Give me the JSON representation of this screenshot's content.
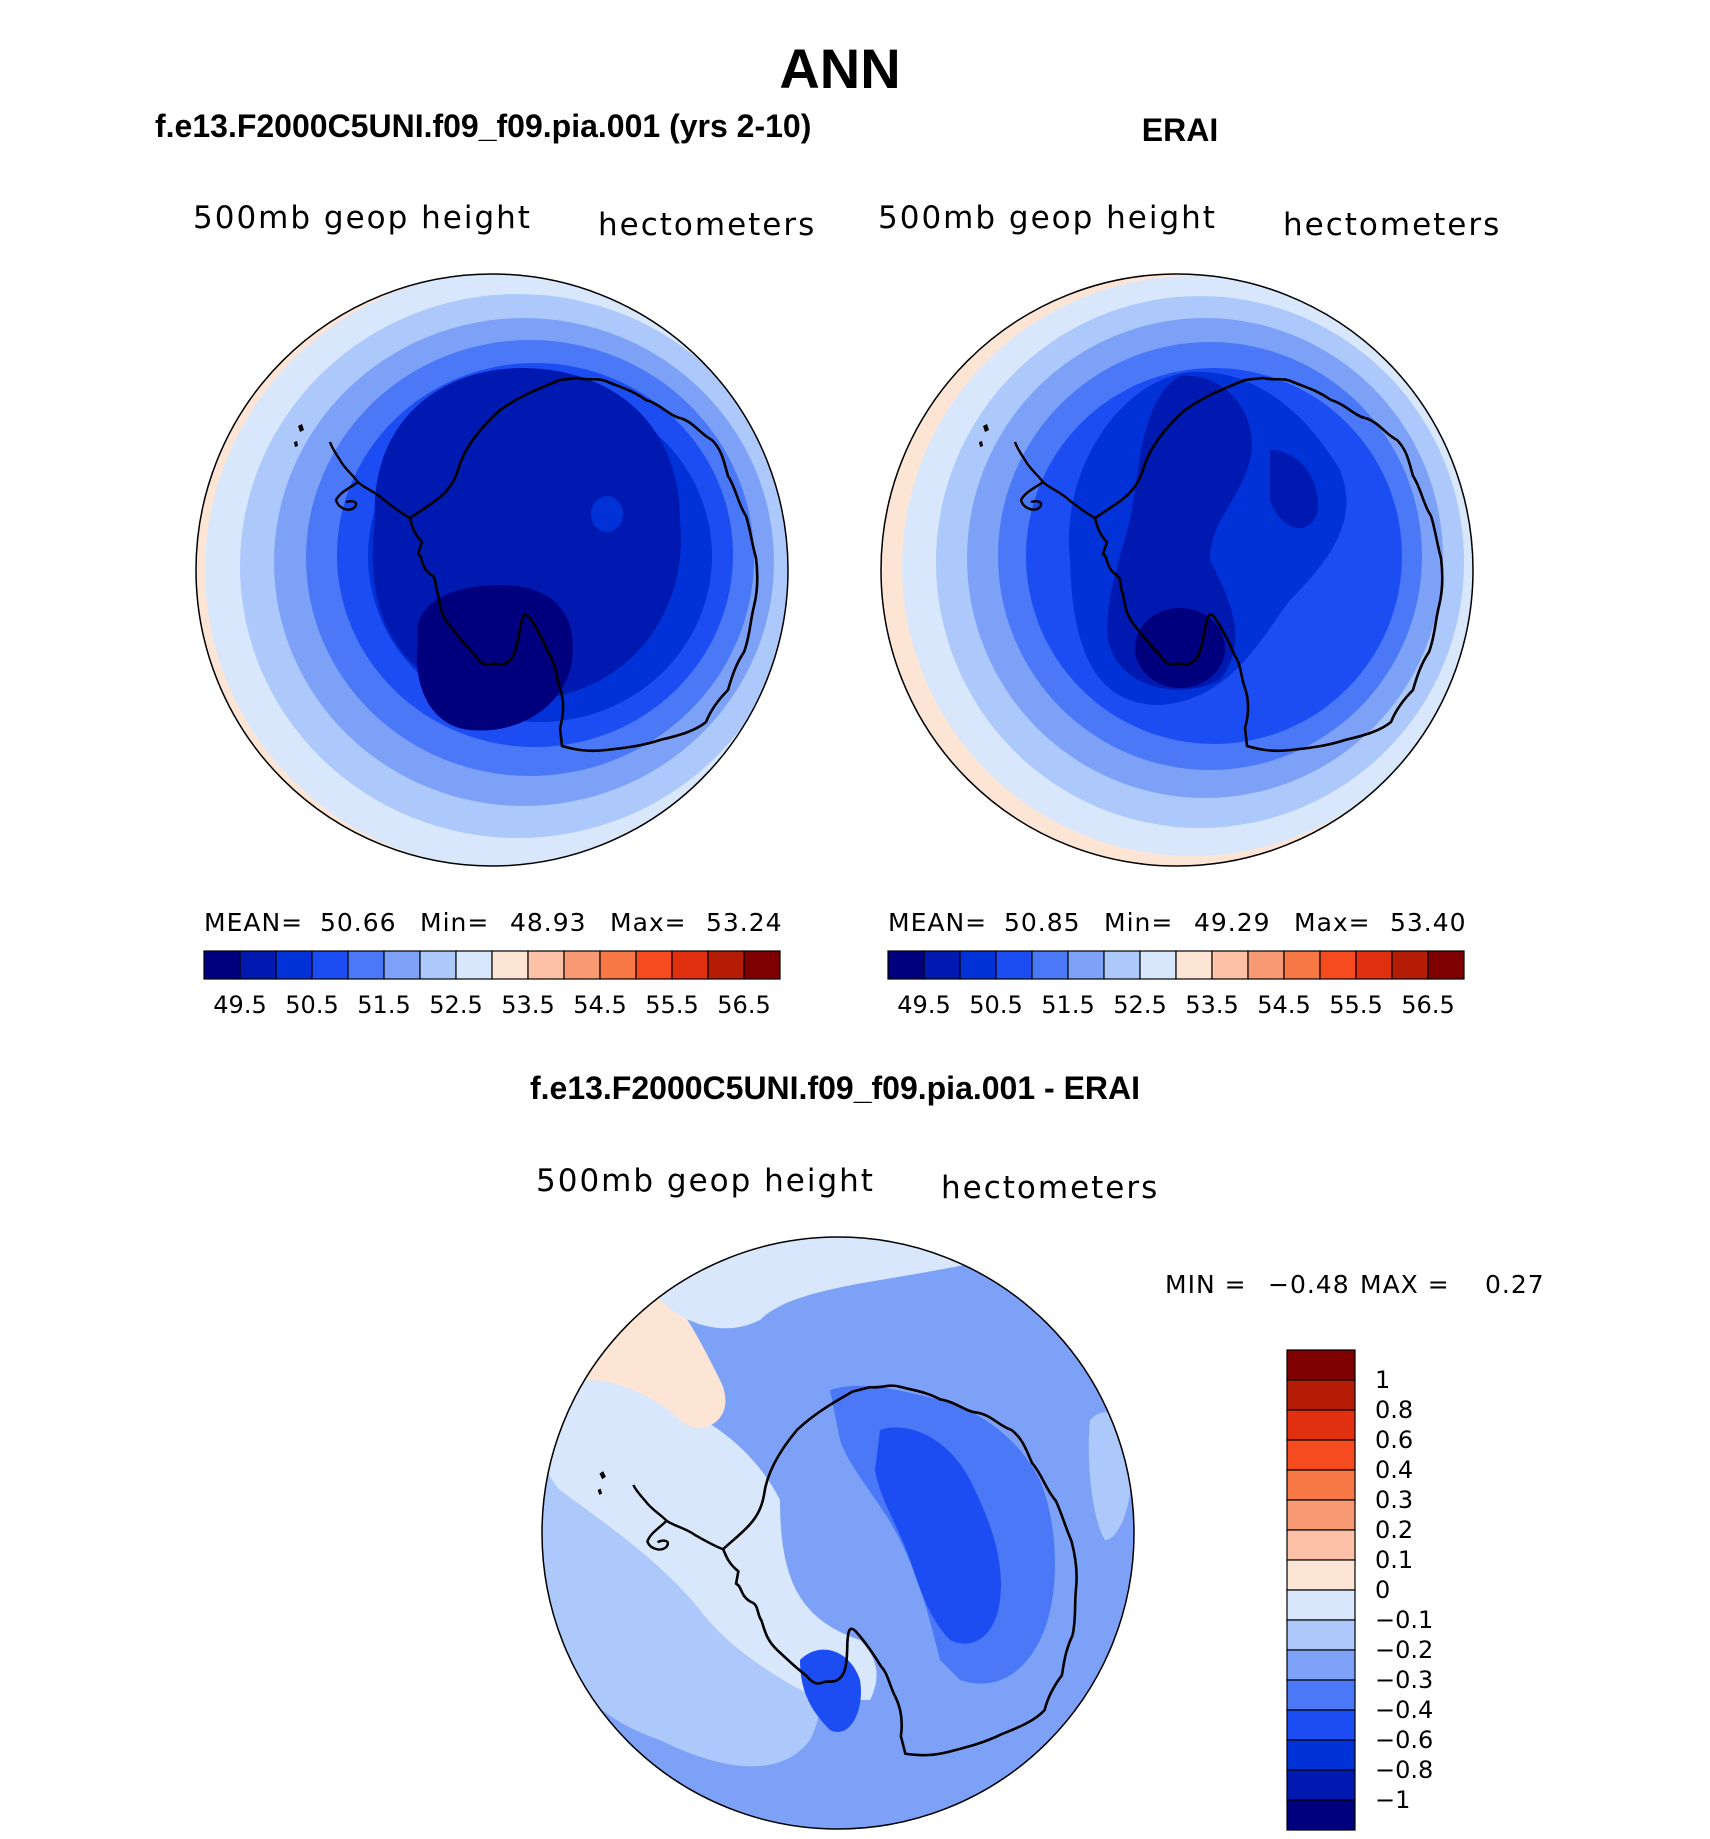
{
  "figure_title": "ANN",
  "chart_data": [
    {
      "type": "heatmap",
      "title": "f.e13.F2000C5UNI.f09_f09.pia.001 (yrs 2-10)",
      "left_label": "500mb geop height",
      "right_label": "hectometers",
      "stats": {
        "mean_label": "MEAN=",
        "mean": "50.66",
        "min_label": "Min=",
        "min": "48.93",
        "max_label": "Max=",
        "max": "53.24"
      },
      "colorbar_ticks": [
        "49.5",
        "50.5",
        "51.5",
        "52.5",
        "53.5",
        "54.5",
        "55.5",
        "56.5"
      ],
      "colorbar_colors": [
        "#00007f",
        "#0019b0",
        "#0032d8",
        "#1c4df2",
        "#4a78f6",
        "#7ea1f8",
        "#adc8fa",
        "#d8e7fb",
        "#fde5d5",
        "#fcc1a6",
        "#f79a73",
        "#f77844",
        "#f54b1f",
        "#e0300f",
        "#b41c05",
        "#7f0000"
      ],
      "projection": "south-polar-stereographic"
    },
    {
      "type": "heatmap",
      "title": "ERAI",
      "left_label": "500mb geop height",
      "right_label": "hectometers",
      "stats": {
        "mean_label": "MEAN=",
        "mean": "50.85",
        "min_label": "Min=",
        "min": "49.29",
        "max_label": "Max=",
        "max": "53.40"
      },
      "colorbar_ticks": [
        "49.5",
        "50.5",
        "51.5",
        "52.5",
        "53.5",
        "54.5",
        "55.5",
        "56.5"
      ],
      "colorbar_colors": [
        "#00007f",
        "#0019b0",
        "#0032d8",
        "#1c4df2",
        "#4a78f6",
        "#7ea1f8",
        "#adc8fa",
        "#d8e7fb",
        "#fde5d5",
        "#fcc1a6",
        "#f79a73",
        "#f77844",
        "#f54b1f",
        "#e0300f",
        "#b41c05",
        "#7f0000"
      ],
      "projection": "south-polar-stereographic"
    },
    {
      "type": "heatmap",
      "title": "f.e13.F2000C5UNI.f09_f09.pia.001 - ERAI",
      "left_label": "500mb geop height",
      "right_label": "hectometers",
      "stats": {
        "min_label": "MIN =",
        "min": "−0.48",
        "max_label": "MAX =",
        "max": "0.27"
      },
      "colorbar_ticks": [
        "1",
        "0.8",
        "0.6",
        "0.4",
        "0.3",
        "0.2",
        "0.1",
        "0",
        "−0.1",
        "−0.2",
        "−0.3",
        "−0.4",
        "−0.6",
        "−0.8",
        "−1"
      ],
      "colorbar_colors": [
        "#7f0000",
        "#b41c05",
        "#e0300f",
        "#f54b1f",
        "#f77844",
        "#f79a73",
        "#fcc1a6",
        "#fde5d5",
        "#d8e7fb",
        "#adc8fa",
        "#7ea1f8",
        "#4a78f6",
        "#1c4df2",
        "#0032d8",
        "#0019b0",
        "#00007f"
      ],
      "projection": "south-polar-stereographic"
    }
  ]
}
